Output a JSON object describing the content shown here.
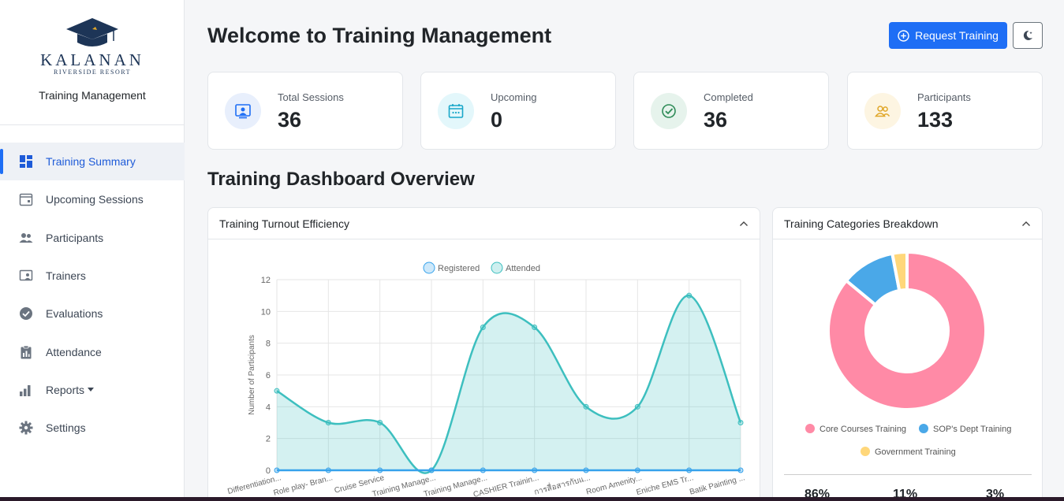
{
  "sidebar": {
    "logo_word": "KALANAN",
    "logo_sub": "RIVERSIDE RESORT",
    "app_name": "Training Management",
    "items": [
      {
        "label": "Training Summary",
        "icon": "dashboard-icon",
        "active": true
      },
      {
        "label": "Upcoming Sessions",
        "icon": "calendar-icon"
      },
      {
        "label": "Participants",
        "icon": "users-icon"
      },
      {
        "label": "Trainers",
        "icon": "trainer-icon"
      },
      {
        "label": "Evaluations",
        "icon": "check-circle-icon"
      },
      {
        "label": "Attendance",
        "icon": "clipboard-icon"
      },
      {
        "label": "Reports",
        "icon": "bar-chart-icon"
      },
      {
        "label": "Settings",
        "icon": "gear-icon"
      }
    ]
  },
  "header": {
    "title": "Welcome to Training Management",
    "request_label": "Request Training"
  },
  "stats": [
    {
      "label": "Total Sessions",
      "value": "36",
      "icon": "presentation-icon",
      "color": "#1e6ef5",
      "bg": "#e8effc"
    },
    {
      "label": "Upcoming",
      "value": "0",
      "icon": "calendar-icon",
      "color": "#18a7c9",
      "bg": "#e3f7fb"
    },
    {
      "label": "Completed",
      "value": "36",
      "icon": "check-circle-icon",
      "color": "#2e8b57",
      "bg": "#e6f3ec"
    },
    {
      "label": "Participants",
      "value": "133",
      "icon": "users-icon",
      "color": "#e0a72a",
      "bg": "#fdf5e2"
    }
  ],
  "section_title": "Training Dashboard Overview",
  "turnout_panel": {
    "title": "Training Turnout Efficiency"
  },
  "categories_panel": {
    "title": "Training Categories Breakdown",
    "percents": [
      "86%",
      "11%",
      "3%"
    ]
  },
  "chart_data": [
    {
      "type": "line",
      "title": "",
      "xlabel": "",
      "ylabel": "Number of Participants",
      "ylim": [
        0,
        12
      ],
      "yticks": [
        0,
        2,
        4,
        6,
        8,
        10,
        12
      ],
      "grid": true,
      "legend_position": "top",
      "categories": [
        "Differentiation...",
        "Role play- Bran...",
        "Cruise Service",
        "Training Manage...",
        "Training Manage...",
        "CASHIER Trainin...",
        "การสื่อสารกับแ...",
        "Room Amenity...",
        "Eniche EMS Tr...",
        "Batik Painting ..."
      ],
      "series": [
        {
          "name": "Registered",
          "values": [
            0,
            0,
            0,
            0,
            0,
            0,
            0,
            0,
            0,
            0
          ],
          "color": "#36a2eb"
        },
        {
          "name": "Attended",
          "values": [
            5,
            3,
            3,
            0,
            9,
            9,
            4,
            4,
            11,
            3
          ],
          "color": "#3dbfbf"
        }
      ]
    },
    {
      "type": "pie",
      "title": "",
      "legend_position": "bottom",
      "labels": [
        "Core Courses Training",
        "SOP's Dept Training",
        "Government Training"
      ],
      "values": [
        86,
        11,
        3
      ],
      "colors": [
        "#ff8aa6",
        "#4aa8e8",
        "#ffd77a"
      ]
    }
  ]
}
